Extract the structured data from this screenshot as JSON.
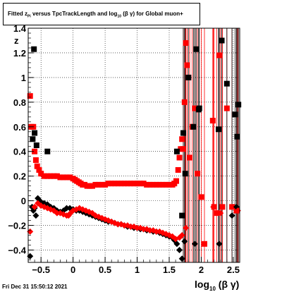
{
  "chart_data": {
    "type": "scatter",
    "title": {
      "prefix": "Fitted  z",
      "sub1": "Pi",
      "middle": "  versus TpcTrackLength and log",
      "sub2": "10",
      "suffix": " (β  γ) for Global muon+"
    },
    "xlabel": {
      "main": "log",
      "sub": "10",
      "rest": " (β γ)"
    },
    "ylabel": "z",
    "xlim": [
      -0.7,
      2.6
    ],
    "ylim": [
      -0.5,
      1.4
    ],
    "xticks": [
      -0.5,
      0,
      0.5,
      1,
      1.5,
      2,
      2.5
    ],
    "xtick_labels": [
      "−0.5",
      "0",
      "0.5",
      "1",
      "1.5",
      "2",
      "2.5"
    ],
    "yticks": [
      -0.4,
      -0.2,
      0,
      0.2,
      0.4,
      0.6,
      0.8,
      1,
      1.2,
      1.4
    ],
    "ytick_labels": [
      "−0.4",
      "−0.2",
      "0",
      "0.2",
      "0.4",
      "0.6",
      "0.8",
      "1",
      "1.2",
      "1.4"
    ],
    "grid": true,
    "series": [
      {
        "color": "#ff0000",
        "marker": "square",
        "points": [
          [
            -0.67,
            0.85
          ],
          [
            -0.65,
            0.6
          ],
          [
            -0.62,
            0.6
          ],
          [
            -0.6,
            0.4
          ],
          [
            -0.58,
            0.33
          ],
          [
            -0.56,
            0.28
          ],
          [
            -0.53,
            0.25
          ],
          [
            -0.5,
            0.22
          ],
          [
            -0.45,
            0.2
          ],
          [
            -0.4,
            0.2
          ],
          [
            -0.35,
            0.2
          ],
          [
            -0.3,
            0.2
          ],
          [
            -0.25,
            0.2
          ],
          [
            -0.2,
            0.19
          ],
          [
            -0.15,
            0.19
          ],
          [
            -0.1,
            0.19
          ],
          [
            -0.05,
            0.19
          ],
          [
            0.0,
            0.18
          ],
          [
            0.03,
            0.17
          ],
          [
            0.06,
            0.16
          ],
          [
            0.09,
            0.15
          ],
          [
            0.12,
            0.14
          ],
          [
            0.15,
            0.13
          ],
          [
            0.18,
            0.13
          ],
          [
            0.22,
            0.12
          ],
          [
            0.26,
            0.12
          ],
          [
            0.3,
            0.12
          ],
          [
            0.35,
            0.13
          ],
          [
            0.4,
            0.13
          ],
          [
            0.45,
            0.13
          ],
          [
            0.5,
            0.13
          ],
          [
            0.55,
            0.14
          ],
          [
            0.6,
            0.14
          ],
          [
            0.65,
            0.14
          ],
          [
            0.7,
            0.14
          ],
          [
            0.75,
            0.14
          ],
          [
            0.8,
            0.14
          ],
          [
            0.85,
            0.14
          ],
          [
            0.9,
            0.14
          ],
          [
            0.95,
            0.14
          ],
          [
            1.0,
            0.14
          ],
          [
            1.05,
            0.14
          ],
          [
            1.1,
            0.14
          ],
          [
            1.15,
            0.13
          ],
          [
            1.2,
            0.13
          ],
          [
            1.25,
            0.13
          ],
          [
            1.3,
            0.13
          ],
          [
            1.35,
            0.13
          ],
          [
            1.4,
            0.13
          ],
          [
            1.45,
            0.13
          ],
          [
            1.5,
            0.13
          ],
          [
            1.55,
            0.13
          ],
          [
            1.58,
            0.14
          ],
          [
            1.61,
            0.16
          ],
          [
            1.64,
            0.25
          ],
          [
            1.66,
            0.35
          ],
          [
            1.68,
            0.42
          ],
          [
            1.7,
            0.5
          ],
          [
            1.72,
            0.42
          ],
          [
            1.74,
            0.8
          ],
          [
            1.76,
            1.28
          ],
          [
            1.78,
            1.1
          ],
          [
            1.82,
            0.35
          ],
          [
            1.86,
            0.6
          ],
          [
            1.9,
            0.75
          ],
          [
            1.94,
            0.22
          ],
          [
            2.0,
            0.03
          ],
          [
            2.05,
            -0.35
          ],
          [
            2.18,
            0.65
          ],
          [
            2.2,
            -0.05
          ],
          [
            2.24,
            -0.1
          ],
          [
            2.28,
            1.18
          ],
          [
            2.33,
            -0.05
          ],
          [
            2.4,
            0.75
          ],
          [
            2.48,
            -0.05
          ],
          [
            2.55,
            -0.08
          ]
        ]
      },
      {
        "color": "#000000",
        "marker": "square",
        "points": [
          [
            -0.63,
            0.5
          ],
          [
            -0.6,
            0.55
          ],
          [
            -0.57,
            0.45
          ],
          [
            -0.61,
            1.23
          ],
          [
            -0.4,
            0.4
          ],
          [
            1.62,
            0.4
          ],
          [
            1.7,
            -0.12
          ],
          [
            1.72,
            0.55
          ],
          [
            1.75,
            0.22
          ],
          [
            1.8,
            1.0
          ],
          [
            1.88,
            0.6
          ],
          [
            1.92,
            1.23
          ],
          [
            1.97,
            0.75
          ],
          [
            1.96,
            0.74
          ],
          [
            2.27,
            0.58
          ],
          [
            2.32,
            1.3
          ],
          [
            2.4,
            0.95
          ],
          [
            2.53,
            0.7
          ],
          [
            2.56,
            0.52
          ],
          [
            2.58,
            0.78
          ]
        ]
      },
      {
        "color": "#000000",
        "marker": "diamond",
        "points": [
          [
            -0.67,
            -0.45
          ],
          [
            -0.64,
            -0.05
          ],
          [
            -0.62,
            -0.08
          ],
          [
            -0.6,
            -0.06
          ],
          [
            -0.58,
            -0.12
          ],
          [
            -0.55,
            0.02
          ],
          [
            -0.52,
            0.0
          ],
          [
            -0.5,
            -0.01
          ],
          [
            -0.45,
            -0.02
          ],
          [
            -0.4,
            -0.03
          ],
          [
            -0.35,
            -0.05
          ],
          [
            -0.3,
            -0.06
          ],
          [
            -0.25,
            -0.08
          ],
          [
            -0.2,
            -0.09
          ],
          [
            -0.15,
            -0.08
          ],
          [
            -0.1,
            -0.06
          ],
          [
            -0.05,
            -0.06
          ],
          [
            0.0,
            -0.07
          ],
          [
            0.05,
            -0.08
          ],
          [
            0.1,
            -0.08
          ],
          [
            0.15,
            -0.09
          ],
          [
            0.2,
            -0.1
          ],
          [
            0.25,
            -0.11
          ],
          [
            0.3,
            -0.12
          ],
          [
            0.35,
            -0.13
          ],
          [
            0.4,
            -0.14
          ],
          [
            0.45,
            -0.15
          ],
          [
            0.5,
            -0.16
          ],
          [
            0.55,
            -0.17
          ],
          [
            0.6,
            -0.17
          ],
          [
            0.65,
            -0.18
          ],
          [
            0.7,
            -0.19
          ],
          [
            0.75,
            -0.19
          ],
          [
            0.8,
            -0.2
          ],
          [
            0.85,
            -0.21
          ],
          [
            0.9,
            -0.21
          ],
          [
            0.95,
            -0.22
          ],
          [
            1.0,
            -0.22
          ],
          [
            1.05,
            -0.23
          ],
          [
            1.1,
            -0.23
          ],
          [
            1.15,
            -0.24
          ],
          [
            1.2,
            -0.24
          ],
          [
            1.25,
            -0.25
          ],
          [
            1.3,
            -0.25
          ],
          [
            1.35,
            -0.26
          ],
          [
            1.4,
            -0.27
          ],
          [
            1.45,
            -0.28
          ],
          [
            1.5,
            -0.29
          ],
          [
            1.55,
            -0.3
          ],
          [
            1.58,
            -0.32
          ],
          [
            1.62,
            -0.35
          ],
          [
            1.66,
            -0.4
          ],
          [
            1.7,
            -0.47
          ],
          [
            1.74,
            -0.33
          ],
          [
            1.9,
            -0.35
          ],
          [
            2.28,
            -0.35
          ],
          [
            2.48,
            -0.12
          ],
          [
            2.55,
            -0.05
          ]
        ]
      },
      {
        "color": "#ff0000",
        "marker": "diamond",
        "points": [
          [
            -0.67,
            -0.25
          ],
          [
            -0.6,
            -0.05
          ],
          [
            -0.55,
            -0.02
          ],
          [
            -0.5,
            -0.04
          ],
          [
            -0.45,
            -0.05
          ],
          [
            -0.4,
            -0.06
          ],
          [
            -0.35,
            -0.07
          ],
          [
            -0.3,
            -0.08
          ],
          [
            -0.25,
            -0.1
          ],
          [
            -0.2,
            -0.1
          ],
          [
            -0.15,
            -0.11
          ],
          [
            -0.1,
            -0.12
          ],
          [
            -0.07,
            -0.12
          ],
          [
            -0.04,
            -0.1
          ],
          [
            0.0,
            -0.08
          ],
          [
            0.05,
            -0.07
          ],
          [
            0.1,
            -0.06
          ],
          [
            0.15,
            -0.07
          ],
          [
            0.2,
            -0.08
          ],
          [
            0.25,
            -0.09
          ],
          [
            0.3,
            -0.1
          ],
          [
            0.35,
            -0.12
          ],
          [
            0.4,
            -0.13
          ],
          [
            0.45,
            -0.14
          ],
          [
            0.5,
            -0.15
          ],
          [
            0.55,
            -0.16
          ],
          [
            0.6,
            -0.17
          ],
          [
            0.65,
            -0.18
          ],
          [
            0.7,
            -0.19
          ],
          [
            0.75,
            -0.19
          ],
          [
            0.8,
            -0.2
          ],
          [
            0.85,
            -0.2
          ],
          [
            0.9,
            -0.21
          ],
          [
            0.95,
            -0.21
          ],
          [
            1.0,
            -0.22
          ],
          [
            1.05,
            -0.22
          ],
          [
            1.1,
            -0.23
          ],
          [
            1.15,
            -0.23
          ],
          [
            1.2,
            -0.24
          ],
          [
            1.25,
            -0.24
          ],
          [
            1.3,
            -0.25
          ],
          [
            1.35,
            -0.25
          ],
          [
            1.4,
            -0.26
          ],
          [
            1.45,
            -0.27
          ],
          [
            1.5,
            -0.28
          ],
          [
            1.55,
            -0.29
          ],
          [
            1.6,
            -0.31
          ],
          [
            1.66,
            -0.3
          ],
          [
            1.7,
            -0.28
          ],
          [
            1.76,
            -0.22
          ],
          [
            2.19,
            -0.05
          ],
          [
            2.3,
            -0.1
          ],
          [
            2.57,
            -0.08
          ]
        ]
      }
    ]
  },
  "footer": {
    "timestamp": "Fri Dec 31 15:50:12 2021"
  }
}
